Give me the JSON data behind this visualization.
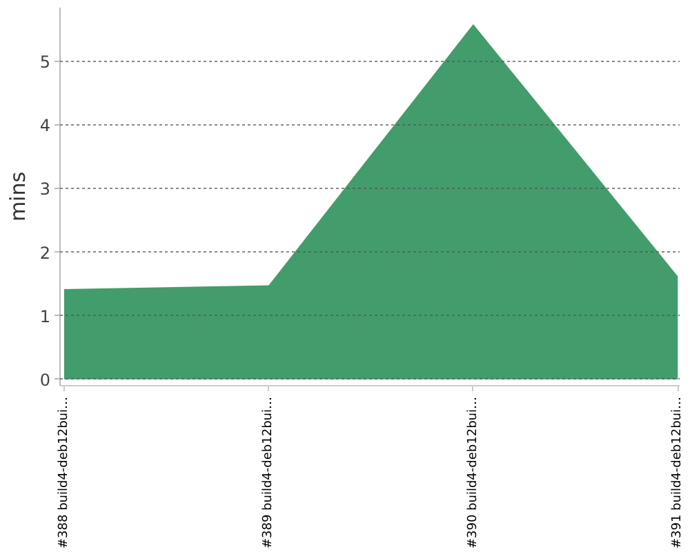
{
  "chart_data": {
    "type": "area",
    "ylabel": "mins",
    "categories": [
      "#388 build4-deb12bui…",
      "#389 build4-deb12bui…",
      "#390 build4-deb12bui…",
      "#391 build4-deb12bui…"
    ],
    "values": [
      1.42,
      1.48,
      5.59,
      1.62
    ],
    "color": "#439c6c",
    "ylim": [
      -0.1,
      5.85
    ],
    "yticks": [
      0,
      1,
      2,
      3,
      4,
      5
    ],
    "grid": "y"
  }
}
